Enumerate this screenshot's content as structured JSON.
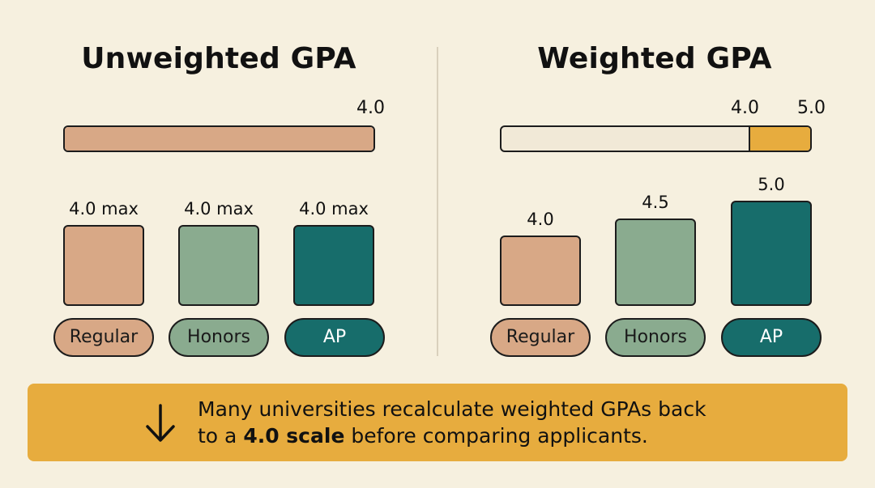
{
  "unweighted": {
    "title": "Unweighted GPA",
    "scale_max_label": "4.0",
    "scale_max": 4.0,
    "scale_fill_fraction": 1.0,
    "bars": [
      {
        "label": "4.0 max",
        "value": 4.0,
        "category": "Regular"
      },
      {
        "label": "4.0 max",
        "value": 4.0,
        "category": "Honors"
      },
      {
        "label": "4.0 max",
        "value": 4.0,
        "category": "AP"
      }
    ]
  },
  "weighted": {
    "title": "Weighted GPA",
    "scale_base_label": "4.0",
    "scale_max_label": "5.0",
    "scale_base": 4.0,
    "scale_max": 5.0,
    "bars": [
      {
        "label": "4.0",
        "value": 4.0,
        "category": "Regular"
      },
      {
        "label": "4.5",
        "value": 4.5,
        "category": "Honors"
      },
      {
        "label": "5.0",
        "value": 5.0,
        "category": "AP"
      }
    ]
  },
  "colors": {
    "background": "#f6f0df",
    "regular": "#d8a886",
    "honors": "#8aab8f",
    "ap": "#176d6b",
    "weighted_track": "#f1e9d7",
    "weighted_extra": "#e7ac3e",
    "banner": "#e7ac3e"
  },
  "banner": {
    "icon": "arrow-down-icon",
    "line1": "Many universities recalculate weighted GPAs back",
    "line2_prefix": "to a ",
    "line2_bold": "4.0 scale",
    "line2_suffix": " before comparing applicants."
  }
}
